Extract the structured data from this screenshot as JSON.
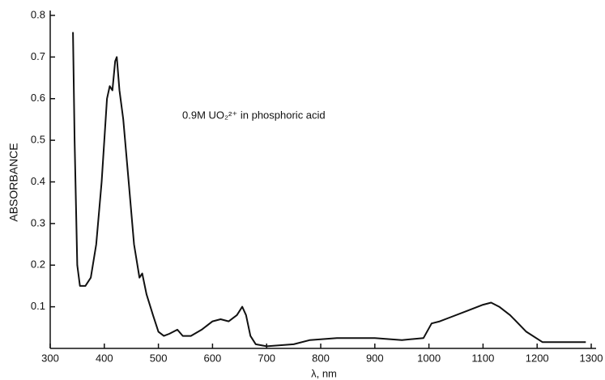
{
  "chart_data": {
    "type": "line",
    "annotation": "0.9M UO₂²⁺ in phosphoric acid",
    "xlabel": "λ, nm",
    "ylabel": "ABSORBANCE",
    "xlim": [
      300,
      1300
    ],
    "xticks": [
      300,
      400,
      500,
      600,
      700,
      800,
      900,
      1000,
      1100,
      1200,
      1300
    ],
    "ylim": [
      0,
      0.8
    ],
    "yticks": [
      0.1,
      0.2,
      0.3,
      0.4,
      0.5,
      0.6,
      0.7,
      0.8
    ],
    "grid": false,
    "series": [
      {
        "color": "#111111",
        "x": [
          342,
          345,
          350,
          355,
          365,
          375,
          385,
          395,
          405,
          410,
          415,
          420,
          423,
          428,
          435,
          445,
          455,
          465,
          470,
          478,
          490,
          500,
          510,
          520,
          535,
          545,
          560,
          580,
          600,
          615,
          630,
          645,
          655,
          662,
          670,
          680,
          700,
          750,
          780,
          830,
          900,
          950,
          990,
          1005,
          1020,
          1040,
          1070,
          1100,
          1115,
          1130,
          1150,
          1180,
          1210,
          1250,
          1290
        ],
        "values": [
          0.76,
          0.5,
          0.2,
          0.15,
          0.15,
          0.17,
          0.25,
          0.4,
          0.6,
          0.63,
          0.62,
          0.69,
          0.7,
          0.62,
          0.55,
          0.4,
          0.25,
          0.17,
          0.18,
          0.13,
          0.08,
          0.04,
          0.03,
          0.035,
          0.045,
          0.03,
          0.03,
          0.045,
          0.065,
          0.07,
          0.065,
          0.08,
          0.1,
          0.08,
          0.03,
          0.01,
          0.005,
          0.01,
          0.02,
          0.025,
          0.025,
          0.02,
          0.025,
          0.06,
          0.065,
          0.075,
          0.09,
          0.105,
          0.11,
          0.1,
          0.08,
          0.04,
          0.015,
          0.015,
          0.015
        ]
      }
    ]
  }
}
